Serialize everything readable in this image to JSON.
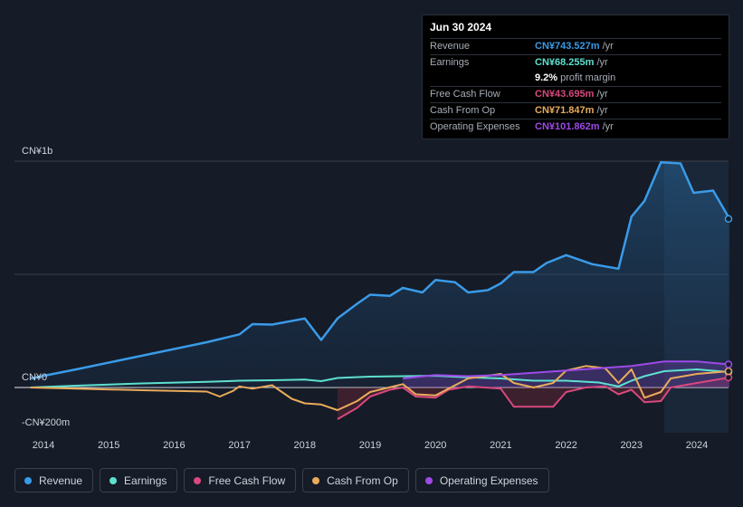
{
  "tooltip": {
    "date": "Jun 30 2024",
    "rows": [
      {
        "label": "Revenue",
        "value": "CN¥743.527m",
        "unit": "/yr",
        "color": "#3a9be8"
      },
      {
        "label": "Earnings",
        "value": "CN¥68.255m",
        "unit": "/yr",
        "color": "#5ee0cf"
      },
      {
        "label": "",
        "value": "9.2%",
        "unit": "profit margin",
        "color": "#ffffff"
      },
      {
        "label": "Free Cash Flow",
        "value": "CN¥43.695m",
        "unit": "/yr",
        "color": "#d8487e"
      },
      {
        "label": "Cash From Op",
        "value": "CN¥71.847m",
        "unit": "/yr",
        "color": "#e9ab5b"
      },
      {
        "label": "Operating Expenses",
        "value": "CN¥101.862m",
        "unit": "/yr",
        "color": "#9d4ae6"
      }
    ]
  },
  "legend": [
    {
      "label": "Revenue",
      "color": "#3a9be8"
    },
    {
      "label": "Earnings",
      "color": "#5ee0cf"
    },
    {
      "label": "Free Cash Flow",
      "color": "#d8487e"
    },
    {
      "label": "Cash From Op",
      "color": "#e9ab5b"
    },
    {
      "label": "Operating Expenses",
      "color": "#9d4ae6"
    }
  ],
  "chart_data": {
    "type": "line",
    "ylabel_top": "CN¥1b",
    "ylabel_zero": "CN¥0",
    "ylabel_bottom": "-CN¥200m",
    "ylim": [
      -200,
      1000
    ],
    "xlim": [
      2013.8,
      2024.5
    ],
    "x_ticks": [
      "2014",
      "2015",
      "2016",
      "2017",
      "2018",
      "2019",
      "2020",
      "2021",
      "2022",
      "2023",
      "2024"
    ],
    "highlight_from": 2023.5,
    "series": [
      {
        "name": "Revenue",
        "color": "#3a9be8",
        "fill": true,
        "points": [
          [
            2013.8,
            40
          ],
          [
            2014.5,
            80
          ],
          [
            2015.5,
            140
          ],
          [
            2016.5,
            200
          ],
          [
            2017,
            235
          ],
          [
            2017.2,
            280
          ],
          [
            2017.5,
            278
          ],
          [
            2018,
            305
          ],
          [
            2018.25,
            210
          ],
          [
            2018.5,
            305
          ],
          [
            2018.8,
            370
          ],
          [
            2019,
            410
          ],
          [
            2019.3,
            405
          ],
          [
            2019.5,
            440
          ],
          [
            2019.8,
            420
          ],
          [
            2020,
            475
          ],
          [
            2020.3,
            465
          ],
          [
            2020.5,
            420
          ],
          [
            2020.8,
            430
          ],
          [
            2021,
            460
          ],
          [
            2021.2,
            510
          ],
          [
            2021.5,
            510
          ],
          [
            2021.7,
            550
          ],
          [
            2022,
            585
          ],
          [
            2022.4,
            545
          ],
          [
            2022.8,
            525
          ],
          [
            2023,
            755
          ],
          [
            2023.2,
            825
          ],
          [
            2023.45,
            995
          ],
          [
            2023.75,
            990
          ],
          [
            2023.95,
            860
          ],
          [
            2024.25,
            870
          ],
          [
            2024.5,
            745
          ]
        ]
      },
      {
        "name": "Earnings",
        "color": "#5ee0cf",
        "fill": false,
        "points": [
          [
            2013.8,
            0
          ],
          [
            2014.5,
            8
          ],
          [
            2015.5,
            18
          ],
          [
            2016.5,
            25
          ],
          [
            2017,
            30
          ],
          [
            2017.5,
            32
          ],
          [
            2018,
            35
          ],
          [
            2018.25,
            28
          ],
          [
            2018.5,
            42
          ],
          [
            2019,
            48
          ],
          [
            2019.5,
            50
          ],
          [
            2020,
            52
          ],
          [
            2020.5,
            45
          ],
          [
            2021,
            40
          ],
          [
            2021.5,
            30
          ],
          [
            2022,
            30
          ],
          [
            2022.5,
            22
          ],
          [
            2022.8,
            5
          ],
          [
            2023,
            30
          ],
          [
            2023.2,
            50
          ],
          [
            2023.5,
            72
          ],
          [
            2024,
            80
          ],
          [
            2024.5,
            68
          ]
        ]
      },
      {
        "name": "Free Cash Flow",
        "color": "#d8487e",
        "fill": false,
        "points": [
          [
            2018.5,
            -140
          ],
          [
            2018.8,
            -90
          ],
          [
            2019,
            -40
          ],
          [
            2019.3,
            -10
          ],
          [
            2019.5,
            0
          ],
          [
            2019.7,
            -40
          ],
          [
            2020,
            -45
          ],
          [
            2020.2,
            -10
          ],
          [
            2020.5,
            5
          ],
          [
            2021,
            -5
          ],
          [
            2021.2,
            -85
          ],
          [
            2021.5,
            -85
          ],
          [
            2021.8,
            -85
          ],
          [
            2022,
            -20
          ],
          [
            2022.3,
            0
          ],
          [
            2022.6,
            5
          ],
          [
            2022.8,
            -30
          ],
          [
            2023,
            -10
          ],
          [
            2023.2,
            -65
          ],
          [
            2023.45,
            -60
          ],
          [
            2023.6,
            0
          ],
          [
            2024,
            20
          ],
          [
            2024.5,
            44
          ]
        ]
      },
      {
        "name": "Cash From Op",
        "color": "#e9ab5b",
        "fill": false,
        "points": [
          [
            2013.8,
            0
          ],
          [
            2014.5,
            -5
          ],
          [
            2015.5,
            -12
          ],
          [
            2016.5,
            -18
          ],
          [
            2016.7,
            -40
          ],
          [
            2016.9,
            -15
          ],
          [
            2017,
            5
          ],
          [
            2017.2,
            -5
          ],
          [
            2017.5,
            10
          ],
          [
            2017.8,
            -50
          ],
          [
            2018,
            -70
          ],
          [
            2018.25,
            -75
          ],
          [
            2018.5,
            -100
          ],
          [
            2018.8,
            -60
          ],
          [
            2019,
            -20
          ],
          [
            2019.5,
            15
          ],
          [
            2019.7,
            -30
          ],
          [
            2020,
            -35
          ],
          [
            2020.2,
            -5
          ],
          [
            2020.5,
            40
          ],
          [
            2021,
            60
          ],
          [
            2021.2,
            20
          ],
          [
            2021.5,
            0
          ],
          [
            2021.8,
            20
          ],
          [
            2022,
            75
          ],
          [
            2022.3,
            95
          ],
          [
            2022.6,
            85
          ],
          [
            2022.8,
            20
          ],
          [
            2023,
            80
          ],
          [
            2023.2,
            -45
          ],
          [
            2023.45,
            -20
          ],
          [
            2023.6,
            40
          ],
          [
            2024,
            60
          ],
          [
            2024.5,
            72
          ]
        ]
      },
      {
        "name": "Operating Expenses",
        "color": "#9d4ae6",
        "fill": true,
        "points": [
          [
            2019.5,
            40
          ],
          [
            2020,
            55
          ],
          [
            2020.5,
            50
          ],
          [
            2021,
            55
          ],
          [
            2021.5,
            65
          ],
          [
            2022,
            75
          ],
          [
            2022.5,
            85
          ],
          [
            2023,
            95
          ],
          [
            2023.5,
            115
          ],
          [
            2024,
            115
          ],
          [
            2024.5,
            102
          ]
        ]
      }
    ]
  }
}
